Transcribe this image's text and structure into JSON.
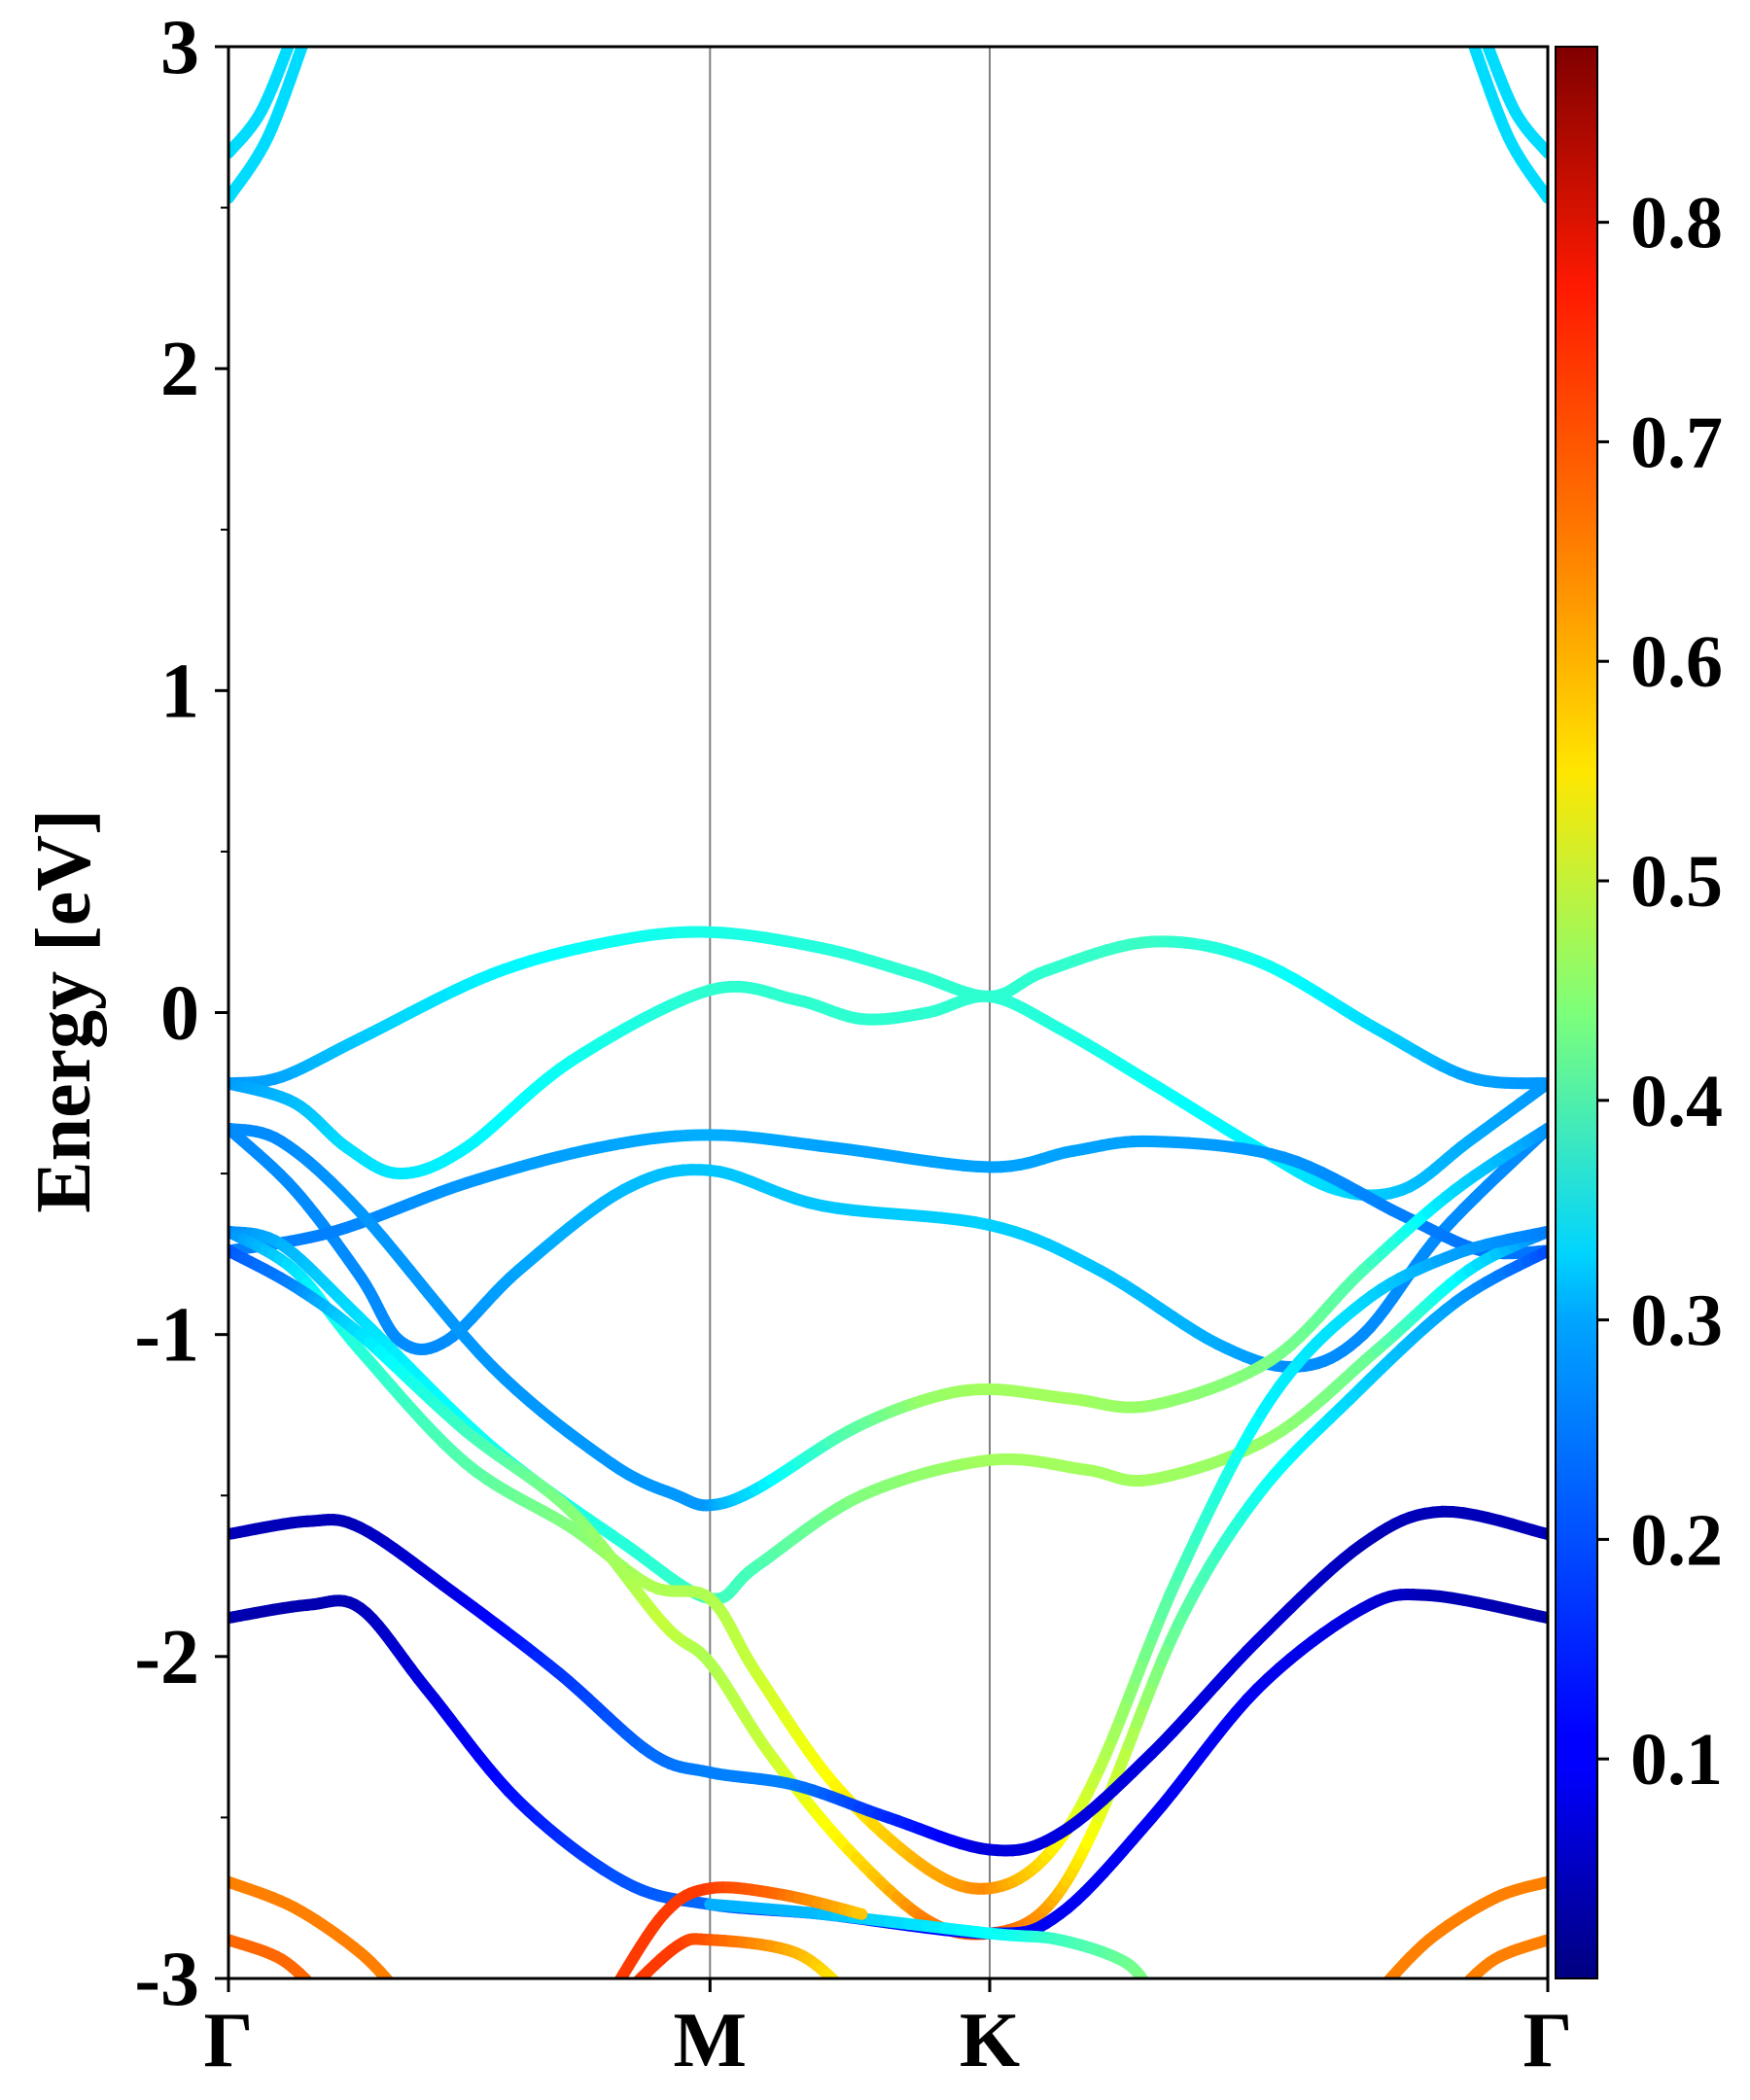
{
  "chart_data": {
    "type": "line",
    "subtype": "electronic band structure (fat bands, colour = weight)",
    "title": "",
    "ylabel": "Energy [eV]",
    "xlabel": "",
    "ylim": [
      -3,
      3
    ],
    "ytick_labels": [
      "3",
      "2",
      "1",
      "0",
      "-1",
      "-2",
      "-3"
    ],
    "ytick_values": [
      3,
      2,
      1,
      0,
      -1,
      -2,
      -3
    ],
    "minor_ytick_step": 0.5,
    "high_symmetry_points": [
      {
        "label": "Γ",
        "x": 0.0
      },
      {
        "label": "M",
        "x": 0.365
      },
      {
        "label": "K",
        "x": 0.577
      },
      {
        "label": "Γ",
        "x": 1.0
      }
    ],
    "colorbar": {
      "colormap": "jet",
      "range": [
        0.0,
        0.88
      ],
      "tick_labels": [
        "0.8",
        "0.7",
        "0.6",
        "0.5",
        "0.4",
        "0.3",
        "0.2",
        "0.1"
      ],
      "tick_values": [
        0.8,
        0.7,
        0.6,
        0.5,
        0.4,
        0.3,
        0.2,
        0.1
      ]
    },
    "bands": [
      {
        "points": [
          [
            0.0,
            2.53
          ],
          [
            0.03,
            2.72
          ],
          [
            0.06,
            3.05
          ]
        ],
        "weights": [
          0.3,
          0.3,
          0.3
        ]
      },
      {
        "points": [
          [
            0.0,
            2.67
          ],
          [
            0.025,
            2.8
          ],
          [
            0.05,
            3.05
          ]
        ],
        "weights": [
          0.3,
          0.3,
          0.3
        ]
      },
      {
        "points": [
          [
            0.94,
            3.05
          ],
          [
            0.97,
            2.72
          ],
          [
            1.0,
            2.53
          ]
        ],
        "weights": [
          0.3,
          0.3,
          0.3
        ]
      },
      {
        "points": [
          [
            0.95,
            3.05
          ],
          [
            0.975,
            2.8
          ],
          [
            1.0,
            2.67
          ]
        ],
        "weights": [
          0.3,
          0.3,
          0.3
        ]
      },
      {
        "points": [
          [
            0.0,
            -0.22
          ],
          [
            0.04,
            -0.2
          ],
          [
            0.1,
            -0.08
          ],
          [
            0.2,
            0.12
          ],
          [
            0.29,
            0.22
          ],
          [
            0.365,
            0.25
          ],
          [
            0.45,
            0.2
          ],
          [
            0.52,
            0.12
          ],
          [
            0.577,
            0.05
          ],
          [
            0.62,
            0.13
          ],
          [
            0.7,
            0.22
          ],
          [
            0.78,
            0.16
          ],
          [
            0.87,
            -0.05
          ],
          [
            0.94,
            -0.2
          ],
          [
            1.0,
            -0.22
          ]
        ],
        "weights": [
          0.24,
          0.25,
          0.28,
          0.32,
          0.34,
          0.35,
          0.36,
          0.37,
          0.37,
          0.37,
          0.38,
          0.35,
          0.3,
          0.25,
          0.24
        ]
      },
      {
        "points": [
          [
            0.0,
            -0.22
          ],
          [
            0.05,
            -0.28
          ],
          [
            0.09,
            -0.42
          ],
          [
            0.13,
            -0.5
          ],
          [
            0.18,
            -0.42
          ],
          [
            0.26,
            -0.15
          ],
          [
            0.365,
            0.07
          ],
          [
            0.43,
            0.04
          ],
          [
            0.48,
            -0.02
          ],
          [
            0.53,
            0.0
          ],
          [
            0.577,
            0.05
          ],
          [
            0.63,
            -0.05
          ],
          [
            0.7,
            -0.22
          ],
          [
            0.78,
            -0.42
          ],
          [
            0.84,
            -0.55
          ],
          [
            0.89,
            -0.55
          ],
          [
            0.94,
            -0.4
          ],
          [
            1.0,
            -0.22
          ]
        ],
        "weights": [
          0.24,
          0.27,
          0.3,
          0.31,
          0.32,
          0.34,
          0.37,
          0.37,
          0.37,
          0.37,
          0.37,
          0.36,
          0.34,
          0.32,
          0.3,
          0.28,
          0.26,
          0.24
        ]
      },
      {
        "points": [
          [
            0.0,
            -0.36
          ],
          [
            0.05,
            -0.55
          ],
          [
            0.1,
            -0.82
          ],
          [
            0.13,
            -1.02
          ],
          [
            0.165,
            -1.02
          ],
          [
            0.22,
            -0.8
          ],
          [
            0.3,
            -0.55
          ],
          [
            0.365,
            -0.49
          ],
          [
            0.45,
            -0.6
          ],
          [
            0.577,
            -0.66
          ],
          [
            0.66,
            -0.8
          ],
          [
            0.75,
            -1.03
          ],
          [
            0.81,
            -1.1
          ],
          [
            0.86,
            -1.0
          ],
          [
            0.92,
            -0.68
          ],
          [
            1.0,
            -0.36
          ]
        ],
        "weights": [
          0.23,
          0.23,
          0.23,
          0.23,
          0.23,
          0.25,
          0.27,
          0.28,
          0.28,
          0.29,
          0.28,
          0.26,
          0.23,
          0.23,
          0.23,
          0.23
        ]
      },
      {
        "points": [
          [
            0.0,
            -0.74
          ],
          [
            0.08,
            -0.68
          ],
          [
            0.18,
            -0.53
          ],
          [
            0.28,
            -0.42
          ],
          [
            0.365,
            -0.38
          ],
          [
            0.46,
            -0.42
          ],
          [
            0.577,
            -0.48
          ],
          [
            0.64,
            -0.43
          ],
          [
            0.7,
            -0.4
          ],
          [
            0.8,
            -0.45
          ],
          [
            0.89,
            -0.63
          ],
          [
            0.95,
            -0.74
          ],
          [
            1.0,
            -0.74
          ]
        ],
        "weights": [
          0.22,
          0.22,
          0.24,
          0.25,
          0.26,
          0.25,
          0.25,
          0.25,
          0.25,
          0.24,
          0.22,
          0.21,
          0.21
        ]
      },
      {
        "points": [
          [
            0.0,
            -0.36
          ],
          [
            0.04,
            -0.4
          ],
          [
            0.1,
            -0.62
          ],
          [
            0.2,
            -1.1
          ],
          [
            0.29,
            -1.4
          ],
          [
            0.34,
            -1.5
          ],
          [
            0.365,
            -1.53
          ],
          [
            0.4,
            -1.48
          ],
          [
            0.47,
            -1.3
          ],
          [
            0.53,
            -1.2
          ],
          [
            0.577,
            -1.17
          ],
          [
            0.64,
            -1.2
          ],
          [
            0.7,
            -1.22
          ],
          [
            0.79,
            -1.08
          ],
          [
            0.86,
            -0.8
          ],
          [
            0.93,
            -0.55
          ],
          [
            1.0,
            -0.36
          ]
        ],
        "weights": [
          0.23,
          0.23,
          0.24,
          0.24,
          0.24,
          0.24,
          0.24,
          0.3,
          0.4,
          0.46,
          0.47,
          0.47,
          0.46,
          0.44,
          0.4,
          0.3,
          0.24
        ]
      },
      {
        "points": [
          [
            0.0,
            -0.68
          ],
          [
            0.04,
            -0.72
          ],
          [
            0.1,
            -0.95
          ],
          [
            0.2,
            -1.35
          ],
          [
            0.3,
            -1.65
          ],
          [
            0.365,
            -1.82
          ],
          [
            0.4,
            -1.72
          ],
          [
            0.48,
            -1.5
          ],
          [
            0.577,
            -1.39
          ],
          [
            0.65,
            -1.42
          ],
          [
            0.7,
            -1.45
          ],
          [
            0.79,
            -1.32
          ],
          [
            0.87,
            -1.05
          ],
          [
            0.94,
            -0.8
          ],
          [
            1.0,
            -0.68
          ]
        ],
        "weights": [
          0.22,
          0.26,
          0.3,
          0.34,
          0.36,
          0.38,
          0.39,
          0.44,
          0.47,
          0.47,
          0.47,
          0.46,
          0.42,
          0.32,
          0.22
        ]
      },
      {
        "points": [
          [
            0.0,
            -0.68
          ],
          [
            0.05,
            -0.8
          ],
          [
            0.1,
            -1.05
          ],
          [
            0.18,
            -1.4
          ],
          [
            0.26,
            -1.6
          ],
          [
            0.32,
            -1.78
          ],
          [
            0.365,
            -1.82
          ],
          [
            0.4,
            -2.05
          ],
          [
            0.46,
            -2.4
          ],
          [
            0.53,
            -2.66
          ],
          [
            0.577,
            -2.72
          ],
          [
            0.62,
            -2.62
          ],
          [
            0.66,
            -2.35
          ],
          [
            0.72,
            -1.75
          ],
          [
            0.79,
            -1.2
          ],
          [
            0.86,
            -0.9
          ],
          [
            0.93,
            -0.75
          ],
          [
            1.0,
            -0.68
          ]
        ],
        "weights": [
          0.22,
          0.3,
          0.36,
          0.4,
          0.44,
          0.48,
          0.48,
          0.5,
          0.55,
          0.62,
          0.65,
          0.58,
          0.5,
          0.4,
          0.32,
          0.3,
          0.25,
          0.22
        ]
      },
      {
        "points": [
          [
            0.0,
            -0.74
          ],
          [
            0.05,
            -0.85
          ],
          [
            0.1,
            -1.0
          ],
          [
            0.18,
            -1.3
          ],
          [
            0.26,
            -1.55
          ],
          [
            0.33,
            -1.9
          ],
          [
            0.365,
            -2.02
          ],
          [
            0.41,
            -2.3
          ],
          [
            0.47,
            -2.6
          ],
          [
            0.53,
            -2.82
          ],
          [
            0.577,
            -2.86
          ],
          [
            0.62,
            -2.78
          ],
          [
            0.66,
            -2.5
          ],
          [
            0.72,
            -1.9
          ],
          [
            0.78,
            -1.5
          ],
          [
            0.85,
            -1.2
          ],
          [
            0.93,
            -0.9
          ],
          [
            1.0,
            -0.74
          ]
        ],
        "weights": [
          0.18,
          0.22,
          0.3,
          0.38,
          0.44,
          0.5,
          0.48,
          0.5,
          0.56,
          0.66,
          0.7,
          0.64,
          0.54,
          0.42,
          0.35,
          0.3,
          0.25,
          0.18
        ]
      },
      {
        "points": [
          [
            0.0,
            -1.62
          ],
          [
            0.06,
            -1.58
          ],
          [
            0.1,
            -1.6
          ],
          [
            0.17,
            -1.8
          ],
          [
            0.25,
            -2.05
          ],
          [
            0.32,
            -2.3
          ],
          [
            0.365,
            -2.36
          ],
          [
            0.43,
            -2.4
          ],
          [
            0.5,
            -2.5
          ],
          [
            0.577,
            -2.6
          ],
          [
            0.63,
            -2.55
          ],
          [
            0.7,
            -2.3
          ],
          [
            0.78,
            -1.95
          ],
          [
            0.86,
            -1.65
          ],
          [
            0.92,
            -1.55
          ],
          [
            1.0,
            -1.62
          ]
        ],
        "weights": [
          0.05,
          0.05,
          0.05,
          0.08,
          0.15,
          0.2,
          0.22,
          0.22,
          0.15,
          0.08,
          0.08,
          0.08,
          0.08,
          0.05,
          0.05,
          0.05
        ]
      },
      {
        "points": [
          [
            0.0,
            -1.88
          ],
          [
            0.06,
            -1.84
          ],
          [
            0.1,
            -1.85
          ],
          [
            0.15,
            -2.1
          ],
          [
            0.22,
            -2.45
          ],
          [
            0.3,
            -2.7
          ],
          [
            0.365,
            -2.77
          ],
          [
            0.45,
            -2.8
          ],
          [
            0.577,
            -2.86
          ],
          [
            0.63,
            -2.8
          ],
          [
            0.7,
            -2.5
          ],
          [
            0.78,
            -2.1
          ],
          [
            0.86,
            -1.85
          ],
          [
            0.91,
            -1.81
          ],
          [
            1.0,
            -1.88
          ]
        ],
        "weights": [
          0.04,
          0.04,
          0.05,
          0.08,
          0.12,
          0.18,
          0.2,
          0.14,
          0.1,
          0.1,
          0.1,
          0.1,
          0.08,
          0.05,
          0.04
        ]
      },
      {
        "points": [
          [
            0.365,
            -2.77
          ],
          [
            0.45,
            -2.8
          ],
          [
            0.577,
            -2.86
          ],
          [
            0.63,
            -2.88
          ],
          [
            0.68,
            -2.95
          ],
          [
            0.7,
            -3.05
          ]
        ],
        "weights": [
          0.26,
          0.27,
          0.33,
          0.38,
          0.42,
          0.45
        ]
      },
      {
        "points": [
          [
            0.0,
            -2.7
          ],
          [
            0.05,
            -2.78
          ],
          [
            0.1,
            -2.92
          ],
          [
            0.13,
            -3.05
          ]
        ],
        "weights": [
          0.66,
          0.66,
          0.66,
          0.66
        ]
      },
      {
        "points": [
          [
            0.0,
            -2.88
          ],
          [
            0.04,
            -2.94
          ],
          [
            0.07,
            -3.05
          ]
        ],
        "weights": [
          0.68,
          0.68,
          0.68
        ]
      },
      {
        "points": [
          [
            0.87,
            -3.05
          ],
          [
            0.91,
            -2.88
          ],
          [
            0.96,
            -2.75
          ],
          [
            1.0,
            -2.7
          ]
        ],
        "weights": [
          0.66,
          0.66,
          0.66,
          0.66
        ]
      },
      {
        "points": [
          [
            0.93,
            -3.05
          ],
          [
            0.96,
            -2.94
          ],
          [
            1.0,
            -2.88
          ]
        ],
        "weights": [
          0.66,
          0.66,
          0.66
        ]
      },
      {
        "points": [
          [
            0.29,
            -3.05
          ],
          [
            0.33,
            -2.8
          ],
          [
            0.365,
            -2.72
          ],
          [
            0.42,
            -2.74
          ],
          [
            0.48,
            -2.8
          ]
        ],
        "weights": [
          0.72,
          0.72,
          0.72,
          0.68,
          0.6
        ]
      },
      {
        "points": [
          [
            0.3,
            -3.05
          ],
          [
            0.34,
            -2.9
          ],
          [
            0.365,
            -2.88
          ],
          [
            0.43,
            -2.92
          ],
          [
            0.47,
            -3.05
          ]
        ],
        "weights": [
          0.72,
          0.72,
          0.7,
          0.62,
          0.55
        ]
      }
    ]
  }
}
